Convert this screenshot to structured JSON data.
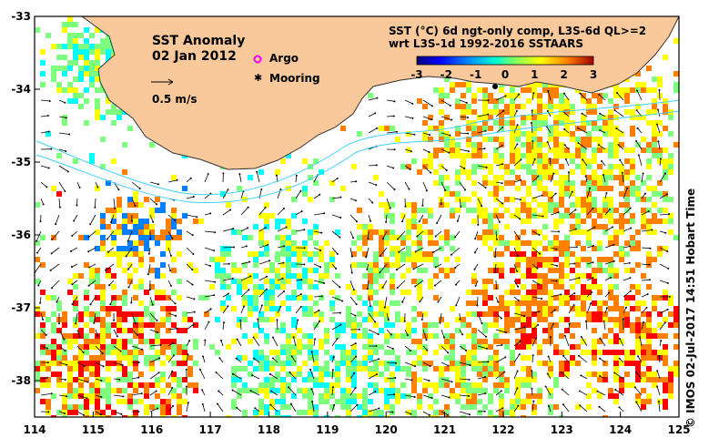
{
  "map": {
    "title": "SST Anomaly",
    "date": "02 Jan 2012",
    "scale_label": "0.5 m/s",
    "legend_argo": "Argo",
    "legend_mooring": "Mooring",
    "product_line1": "SST (°C) 6d ngt-only comp, L3S-6d QL>=2",
    "product_line2": "wrt L3S-1d 1992-2016 SSTAARS",
    "credit": "© IMOS 02-Jul-2017 14:51 Hobart Time",
    "colorbar": {
      "ticks": [
        "-3",
        "-2",
        "-1",
        "0",
        "1",
        "2",
        "3"
      ],
      "colors": [
        "#00007f",
        "#0000ff",
        "#007fff",
        "#00ffff",
        "#7fff7f",
        "#ffff00",
        "#ff7f00",
        "#ff0000",
        "#7f0000"
      ]
    },
    "x_ticks": [
      "114",
      "115",
      "116",
      "117",
      "118",
      "119",
      "120",
      "121",
      "122",
      "123",
      "124",
      "125"
    ],
    "y_ticks": [
      "-33",
      "-34",
      "-35",
      "-36",
      "-37",
      "-38"
    ],
    "lon_range": [
      114,
      125
    ],
    "lat_range": [
      -38.5,
      -33
    ],
    "land_color": "#f9c99b"
  }
}
